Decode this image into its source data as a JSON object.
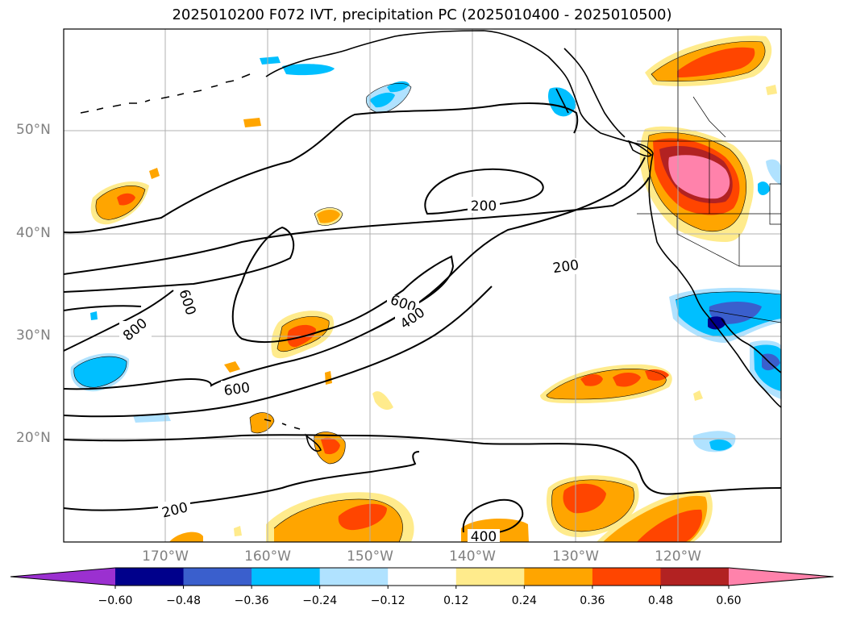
{
  "title": "2025010200 F072 IVT, precipitation PC (2025010400 - 2025010500)",
  "lat_labels": [
    "50°N",
    "40°N",
    "30°N",
    "20°N"
  ],
  "lon_labels": [
    "170°W",
    "160°W",
    "150°W",
    "140°W",
    "130°W",
    "120°W"
  ],
  "contour_labels": [
    "200",
    "200",
    "600",
    "400",
    "800",
    "600",
    "600",
    "200",
    "400"
  ],
  "colorbar": {
    "tick_labels": [
      "−0.60",
      "−0.48",
      "−0.36",
      "−0.24",
      "−0.12",
      "0.12",
      "0.24",
      "0.36",
      "0.48",
      "0.60"
    ],
    "colors": [
      "#9b30d0",
      "#00008b",
      "#3a5fcd",
      "#00bfff",
      "#b0e2ff",
      "#ffffff",
      "#ffeb8c",
      "#ffa500",
      "#ff4500",
      "#b22222",
      "#ff82ab"
    ]
  }
}
